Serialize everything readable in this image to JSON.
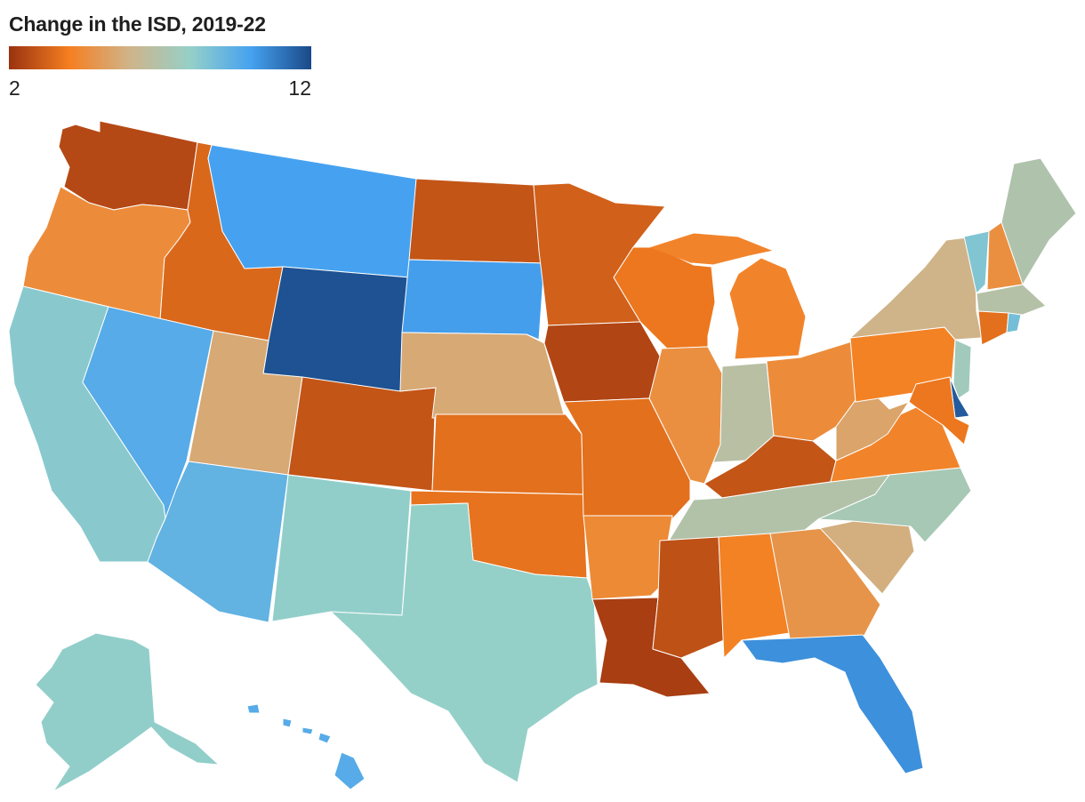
{
  "title": "Change in the ISD, 2019-22",
  "legend": {
    "min_label": "2",
    "max_label": "12",
    "min": 2,
    "max": 12,
    "stops": [
      "#9a3210",
      "#f57f20",
      "#cfb48a",
      "#95d0c8",
      "#46a2f0",
      "#1a4988"
    ]
  },
  "states": [
    {
      "id": "WA",
      "value": 2.6
    },
    {
      "id": "OR",
      "value": 4.5
    },
    {
      "id": "CA",
      "value": 8.3
    },
    {
      "id": "ID",
      "value": 3.4
    },
    {
      "id": "NV",
      "value": 9.6
    },
    {
      "id": "MT",
      "value": 10.0
    },
    {
      "id": "WY",
      "value": 11.8
    },
    {
      "id": "UT",
      "value": 5.6
    },
    {
      "id": "AZ",
      "value": 9.3
    },
    {
      "id": "CO",
      "value": 2.9
    },
    {
      "id": "NM",
      "value": 8.1
    },
    {
      "id": "ND",
      "value": 2.9
    },
    {
      "id": "SD",
      "value": 10.1
    },
    {
      "id": "NE",
      "value": 5.6
    },
    {
      "id": "KS",
      "value": 3.6
    },
    {
      "id": "OK",
      "value": 3.7
    },
    {
      "id": "TX",
      "value": 8.0
    },
    {
      "id": "MN",
      "value": 3.2
    },
    {
      "id": "IA",
      "value": 2.5
    },
    {
      "id": "MO",
      "value": 3.6
    },
    {
      "id": "AR",
      "value": 4.4
    },
    {
      "id": "LA",
      "value": 2.3
    },
    {
      "id": "WI",
      "value": 3.8
    },
    {
      "id": "IL",
      "value": 4.6
    },
    {
      "id": "MI",
      "value": 4.2
    },
    {
      "id": "IN",
      "value": 6.8
    },
    {
      "id": "OH",
      "value": 4.5
    },
    {
      "id": "KY",
      "value": 2.9
    },
    {
      "id": "TN",
      "value": 7.0
    },
    {
      "id": "MS",
      "value": 2.8
    },
    {
      "id": "AL",
      "value": 4.1
    },
    {
      "id": "GA",
      "value": 4.8
    },
    {
      "id": "FL",
      "value": 10.4
    },
    {
      "id": "SC",
      "value": 5.8
    },
    {
      "id": "NC",
      "value": 7.4
    },
    {
      "id": "VA",
      "value": 4.2
    },
    {
      "id": "WV",
      "value": 5.4
    },
    {
      "id": "PA",
      "value": 4.1
    },
    {
      "id": "NY",
      "value": 6.0
    },
    {
      "id": "VT",
      "value": 8.5
    },
    {
      "id": "NH",
      "value": 4.6
    },
    {
      "id": "ME",
      "value": 7.1
    },
    {
      "id": "MA",
      "value": 6.9
    },
    {
      "id": "CT",
      "value": 3.6
    },
    {
      "id": "RI",
      "value": 8.8
    },
    {
      "id": "NJ",
      "value": 7.6
    },
    {
      "id": "DE",
      "value": 11.6
    },
    {
      "id": "MD",
      "value": 3.8
    },
    {
      "id": "AK",
      "value": 8.1
    },
    {
      "id": "HI",
      "value": 9.6
    }
  ]
}
